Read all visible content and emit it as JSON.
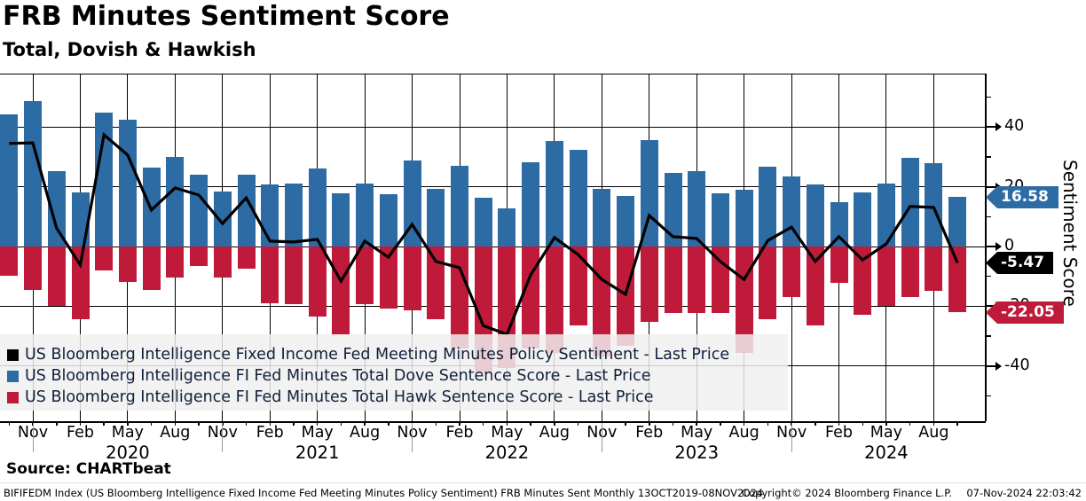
{
  "title": "FRB Minutes Sentiment Score",
  "subtitle": "Total, Dovish & Hawkish",
  "source_label": "Source: CHARTbeat",
  "footer": {
    "left": "BIFIFEDM Index (US Bloomberg Intelligence Fixed Income Fed Meeting Minutes Policy Sentiment) FRB Minutes Sent  Monthly 13OCT2019-08NOV2024",
    "copyright": "Copyright© 2024 Bloomberg Finance L.P.",
    "datetime": "07-Nov-2024 22:03:42"
  },
  "colors": {
    "total": "#000000",
    "dove": "#2d6ba4",
    "hawk": "#c01a3a",
    "year_divider": "#999999",
    "grid": "#000000"
  },
  "legend": {
    "items": [
      {
        "label": "US Bloomberg Intelligence Fixed Income Fed Meeting Minutes Policy Sentiment - Last Price",
        "color_key": "total"
      },
      {
        "label": "US Bloomberg Intelligence FI Fed Minutes Total Dove Sentence Score - Last Price",
        "color_key": "dove"
      },
      {
        "label": "US Bloomberg Intelligence FI Fed Minutes Total Hawk Sentence Score - Last Price",
        "color_key": "hawk"
      }
    ]
  },
  "chart_data": {
    "type": "combo",
    "n_points": 41,
    "period": "FOMC minutes releases, Oct 2019 - Nov 2024",
    "series": [
      {
        "name": "US Bloomberg Intelligence Fixed Income Fed Meeting Minutes Policy Sentiment",
        "type": "line",
        "color_key": "total",
        "values": [
          34.5,
          34.7,
          6.2,
          -6.2,
          37.4,
          30.6,
          12.2,
          19.6,
          17.2,
          7.7,
          16.3,
          1.8,
          1.5,
          2.4,
          -11.6,
          1.8,
          -3.6,
          7.4,
          -5.0,
          -7.1,
          -26.5,
          -29.4,
          -9.5,
          3.0,
          -2.7,
          -11.0,
          -16.0,
          10.4,
          3.3,
          2.7,
          -5.0,
          -11.0,
          2.0,
          6.5,
          -5.0,
          3.3,
          -4.5,
          0.9,
          13.4,
          13.1,
          -5.47
        ]
      },
      {
        "name": "US Bloomberg Intelligence FI Fed Minutes Total Dove Sentence Score",
        "type": "bar",
        "color_key": "dove",
        "values": [
          44.2,
          48.7,
          25.2,
          18.1,
          44.8,
          42.4,
          26.4,
          30.0,
          24.0,
          18.4,
          24.0,
          20.8,
          21.1,
          26.1,
          17.8,
          21.1,
          17.5,
          28.8,
          19.3,
          27.0,
          16.3,
          12.7,
          28.2,
          35.3,
          32.3,
          19.3,
          16.9,
          35.6,
          24.6,
          25.2,
          17.8,
          19.0,
          26.7,
          23.4,
          20.8,
          14.8,
          18.1,
          21.1,
          29.7,
          27.9,
          16.58
        ]
      },
      {
        "name": "US Bloomberg Intelligence FI Fed Minutes Total Hawk Sentence Score",
        "type": "bar",
        "color_key": "hawk",
        "values": [
          -9.8,
          -14.5,
          -20.0,
          -24.3,
          -8.0,
          -11.9,
          -14.5,
          -10.4,
          -6.5,
          -10.4,
          -7.4,
          -19.0,
          -19.3,
          -23.5,
          -29.4,
          -19.3,
          -20.8,
          -21.4,
          -24.3,
          -34.1,
          -42.5,
          -40.7,
          -34.0,
          -35.5,
          -26.4,
          -36.8,
          -33.2,
          -25.2,
          -22.3,
          -22.3,
          -22.3,
          -35.5,
          -24.3,
          -16.9,
          -26.4,
          -12.2,
          -22.8,
          -19.9,
          -16.9,
          -14.8,
          -22.05
        ]
      }
    ],
    "x_axis": {
      "month_labels": [
        "Nov",
        "Feb",
        "May",
        "Aug",
        "Nov",
        "Feb",
        "May",
        "Aug",
        "Nov",
        "Feb",
        "May",
        "Aug",
        "Nov",
        "Feb",
        "May",
        "Aug",
        "Nov",
        "Feb",
        "May",
        "Aug"
      ],
      "labels_on_every_other_bar_starting_at": 2,
      "years": [
        {
          "label": "2020",
          "bar": 6
        },
        {
          "label": "2021",
          "bar": 14
        },
        {
          "label": "2022",
          "bar": 22
        },
        {
          "label": "2023",
          "bar": 30
        },
        {
          "label": "2024",
          "bar": 38
        }
      ],
      "year_dividers_at_bars": [
        2,
        10,
        18,
        26,
        34
      ]
    },
    "y_axis": {
      "title": "Sentiment Score",
      "major_ticks": [
        40,
        20,
        0,
        -20,
        -40
      ],
      "minor_ticks": [
        50,
        30,
        10,
        -10,
        -30,
        -50
      ],
      "range_visible": [
        -58,
        58
      ],
      "grid": true
    },
    "last_values": {
      "dove": "16.58",
      "total": "-5.47",
      "hawk": "-22.05"
    },
    "legend_position": "bottom-left overlay"
  }
}
